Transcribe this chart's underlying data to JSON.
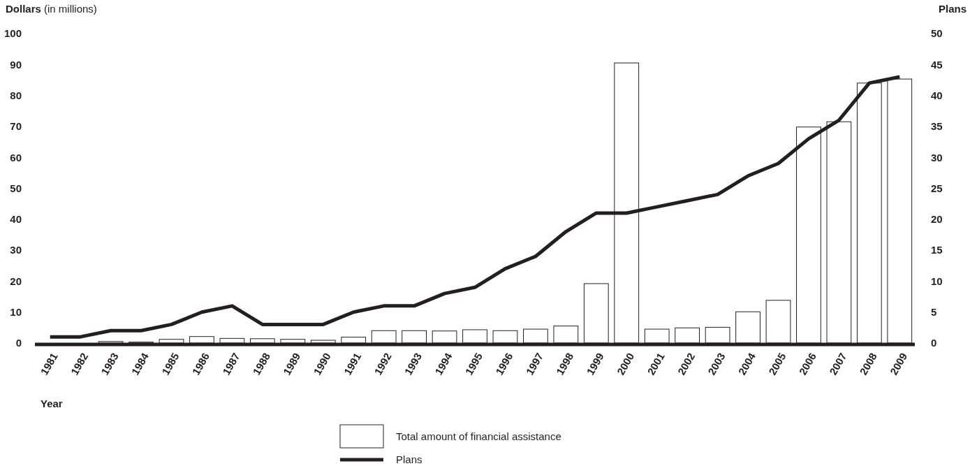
{
  "chart_data": {
    "type": "bar",
    "categories": [
      "1981",
      "1982",
      "1983",
      "1984",
      "1985",
      "1986",
      "1987",
      "1988",
      "1989",
      "1990",
      "1991",
      "1992",
      "1993",
      "1994",
      "1995",
      "1996",
      "1997",
      "1998",
      "1999",
      "2000",
      "2001",
      "2002",
      "2003",
      "2004",
      "2005",
      "2006",
      "2007",
      "2008",
      "2009"
    ],
    "series": [
      {
        "name": "Total amount of financial assistance",
        "color": "#ffffff",
        "values": [
          0,
          0,
          0.5,
          0.3,
          1.2,
          2.1,
          1.5,
          1.4,
          1.2,
          0.9,
          1.9,
          4,
          4,
          3.9,
          4.3,
          4,
          4.5,
          5.5,
          19.2,
          90.5,
          4.5,
          4.9,
          5.1,
          10.1,
          13.8,
          69.8,
          71.5,
          84,
          85.3
        ]
      },
      {
        "name": "Plans",
        "type": "line",
        "axis": "y2",
        "color": "#231f20",
        "values": [
          1,
          1,
          2,
          2,
          3,
          5,
          6,
          3,
          3,
          3,
          5,
          6,
          6,
          8,
          9,
          12,
          14,
          18,
          21,
          21,
          22,
          23,
          24,
          27,
          29,
          33,
          36,
          42,
          43
        ]
      }
    ],
    "ylabel": "Dollars (in millions)",
    "y2label": "Plans",
    "xlabel": "Year",
    "ylim": [
      0,
      100
    ],
    "yticks": [
      0,
      10,
      20,
      30,
      40,
      50,
      60,
      70,
      80,
      90,
      100
    ],
    "y2lim": [
      0,
      50
    ],
    "y2ticks": [
      0,
      5,
      10,
      15,
      20,
      25,
      30,
      35,
      40,
      45,
      50
    ],
    "legend": "bottom",
    "grid": false,
    "marker": "none",
    "line_style": "solid"
  }
}
